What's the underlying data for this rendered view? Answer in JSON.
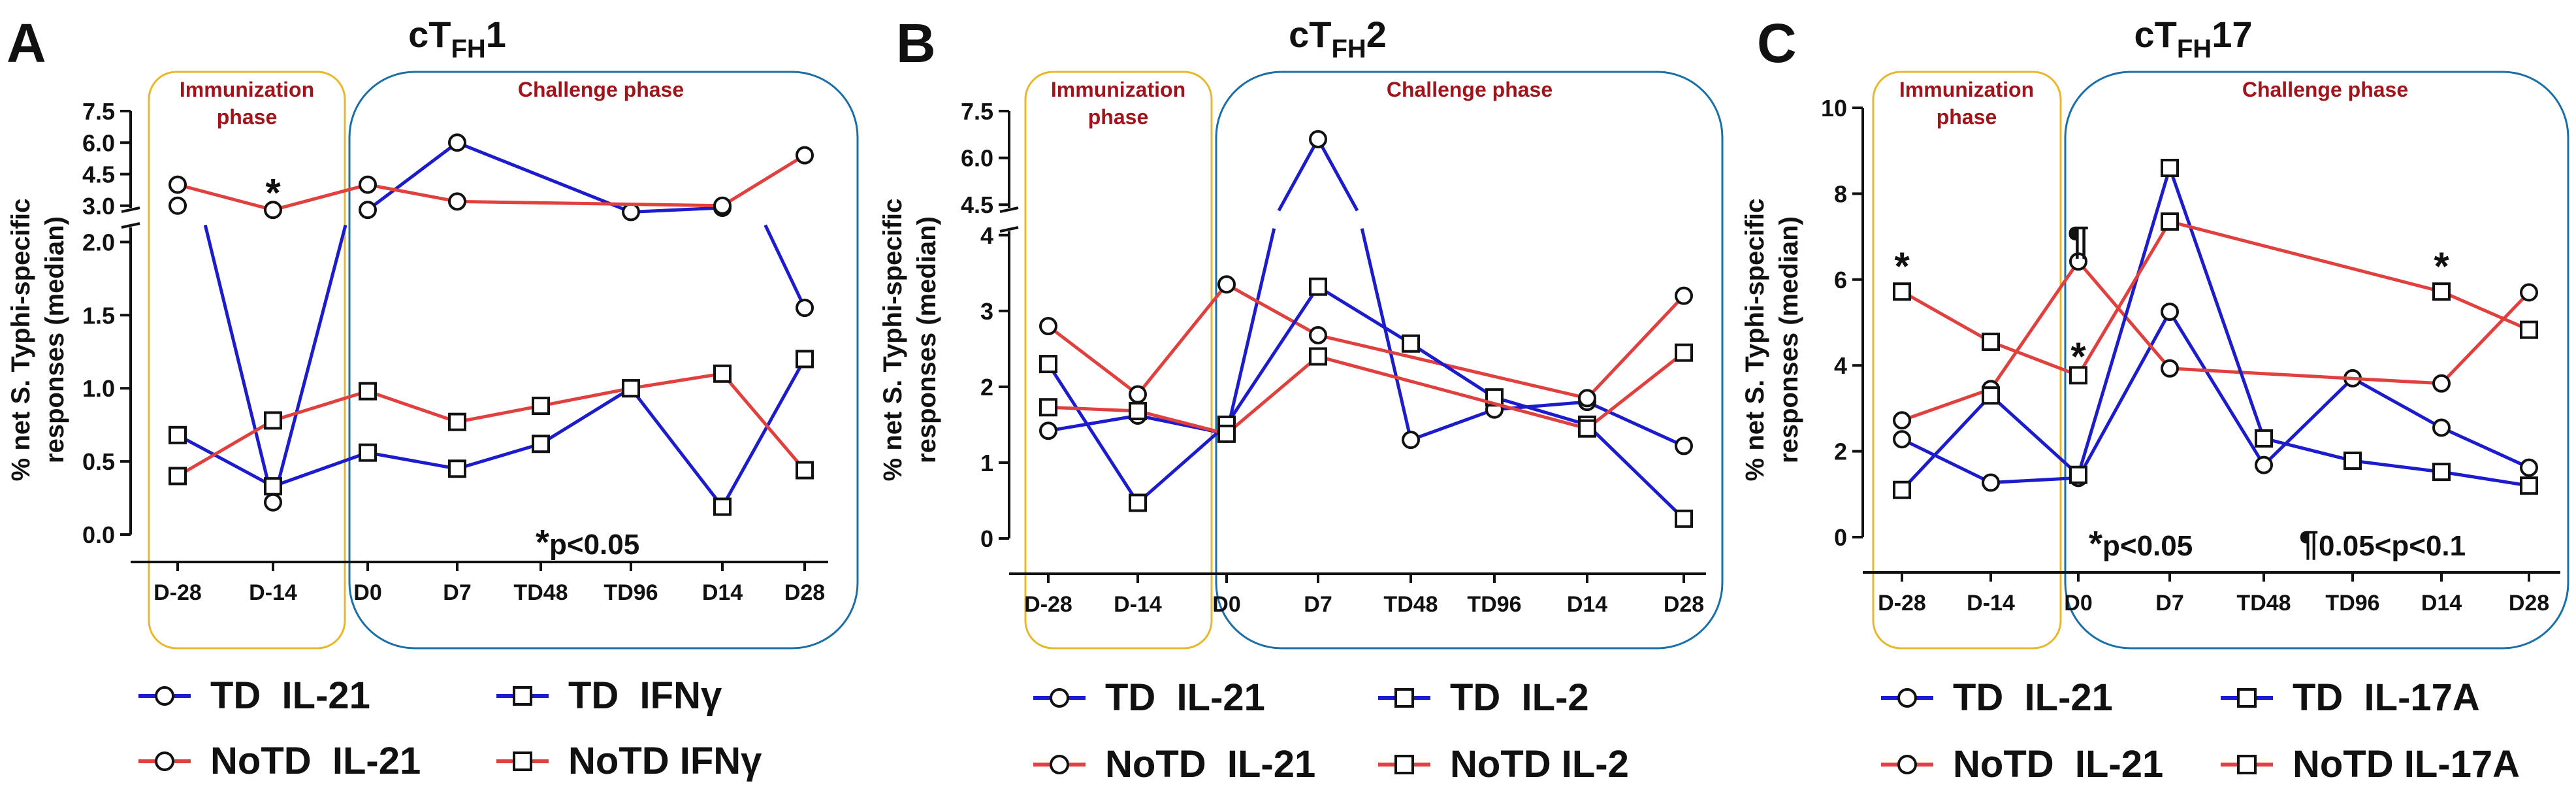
{
  "figure": {
    "colors": {
      "td": "#1c1ccc",
      "notd": "#e0403e",
      "immunization_box": "#e8b82c",
      "challenge_box": "#1b6fa8",
      "phase_text": "#a0141c",
      "axis": "#111111"
    },
    "ylabel_line1": "% net S. Typhi-specific",
    "ylabel_line2": "responses (median)"
  },
  "chart_data": [
    {
      "type": "line",
      "panel_letter": "A",
      "title_main": "cT",
      "title_sub": "FH",
      "title_suffix": "1",
      "phase_immunization_line1": "Immunization",
      "phase_immunization_line2": "phase",
      "phase_challenge": "Challenge phase",
      "categories": [
        "D-28",
        "D-14",
        "D0",
        "D7",
        "TD48",
        "TD96",
        "D14",
        "D28"
      ],
      "y_ticks_lower": [
        "0.0",
        "0.5",
        "1.0",
        "1.5",
        "2.0"
      ],
      "y_ticks_upper": [
        "3.0",
        "4.5",
        "6.0",
        "7.5"
      ],
      "y_break": [
        2.1,
        2.9
      ],
      "ylim": [
        0,
        7.5
      ],
      "series": [
        {
          "name": "TD  IL-21",
          "group": "td",
          "marker": "circle",
          "values": [
            3.0,
            0.22,
            2.8,
            6.0,
            null,
            2.7,
            2.9,
            1.55
          ]
        },
        {
          "name": "NoTD  IL-21",
          "group": "notd",
          "marker": "circle",
          "values": [
            4.0,
            2.8,
            4.0,
            3.2,
            null,
            null,
            3.0,
            5.4
          ]
        },
        {
          "name": "TD  IFNγ",
          "group": "td",
          "marker": "square",
          "values": [
            0.68,
            0.33,
            0.56,
            0.45,
            0.62,
            1.0,
            0.19,
            1.2
          ]
        },
        {
          "name": "NoTD IFNγ",
          "group": "notd",
          "marker": "square",
          "values": [
            0.4,
            0.78,
            0.98,
            0.77,
            0.88,
            1.0,
            1.1,
            0.44
          ]
        }
      ],
      "annotations": [
        {
          "text": "*",
          "x_index": 1,
          "y": 3.6
        }
      ],
      "significance_star": "*",
      "significance_text": "p<0.05",
      "legend": [
        {
          "label": "TD  IL-21",
          "group": "td",
          "marker": "circle"
        },
        {
          "label": "TD  IFNγ",
          "group": "td",
          "marker": "square"
        },
        {
          "label": "NoTD  IL-21",
          "group": "notd",
          "marker": "circle"
        },
        {
          "label": "NoTD IFNγ",
          "group": "notd",
          "marker": "square"
        }
      ]
    },
    {
      "type": "line",
      "panel_letter": "B",
      "title_main": "cT",
      "title_sub": "FH",
      "title_suffix": "2",
      "phase_immunization_line1": "Immunization",
      "phase_immunization_line2": "phase",
      "phase_challenge": "Challenge phase",
      "categories": [
        "D-28",
        "D-14",
        "D0",
        "D7",
        "TD48",
        "TD96",
        "D14",
        "D28"
      ],
      "y_ticks_lower": [
        "0",
        "1",
        "2",
        "3",
        "4"
      ],
      "y_ticks_upper": [
        "4.5",
        "6.0",
        "7.5"
      ],
      "y_break": [
        4.05,
        4.4
      ],
      "ylim": [
        0,
        7.5
      ],
      "series": [
        {
          "name": "TD  IL-21",
          "group": "td",
          "marker": "circle",
          "values": [
            1.42,
            1.62,
            1.38,
            6.6,
            1.3,
            1.7,
            1.8,
            1.22
          ]
        },
        {
          "name": "NoTD  IL-21",
          "group": "notd",
          "marker": "circle",
          "values": [
            2.8,
            1.9,
            3.35,
            2.68,
            null,
            null,
            1.85,
            3.2
          ]
        },
        {
          "name": "TD  IL-2",
          "group": "td",
          "marker": "square",
          "values": [
            2.3,
            0.47,
            1.5,
            3.32,
            2.57,
            1.86,
            1.5,
            0.26
          ]
        },
        {
          "name": "NoTD IL-2",
          "group": "notd",
          "marker": "square",
          "values": [
            1.73,
            1.68,
            1.38,
            2.4,
            null,
            null,
            1.45,
            2.45
          ]
        }
      ],
      "annotations": [],
      "legend": [
        {
          "label": "TD  IL-21",
          "group": "td",
          "marker": "circle"
        },
        {
          "label": "TD  IL-2",
          "group": "td",
          "marker": "square"
        },
        {
          "label": "NoTD  IL-21",
          "group": "notd",
          "marker": "circle"
        },
        {
          "label": "NoTD IL-2",
          "group": "notd",
          "marker": "square"
        }
      ]
    },
    {
      "type": "line",
      "panel_letter": "C",
      "title_main": "cT",
      "title_sub": "FH",
      "title_suffix": "17",
      "phase_immunization_line1": "Immunization",
      "phase_immunization_line2": "phase",
      "phase_challenge": "Challenge phase",
      "categories": [
        "D-28",
        "D-14",
        "D0",
        "D7",
        "TD48",
        "TD96",
        "D14",
        "D28"
      ],
      "y_ticks": [
        "0",
        "2",
        "4",
        "6",
        "8",
        "10"
      ],
      "ylim": [
        0,
        10
      ],
      "series": [
        {
          "name": "TD  IL-21",
          "group": "td",
          "marker": "circle",
          "values": [
            2.28,
            1.27,
            1.38,
            5.25,
            1.68,
            3.7,
            2.55,
            1.62
          ]
        },
        {
          "name": "NoTD  IL-21",
          "group": "notd",
          "marker": "circle",
          "values": [
            2.72,
            3.45,
            6.42,
            3.93,
            null,
            null,
            3.58,
            5.7
          ]
        },
        {
          "name": "TD  IL-17A",
          "group": "td",
          "marker": "square",
          "values": [
            1.1,
            3.3,
            1.45,
            8.6,
            2.3,
            1.78,
            1.52,
            1.2
          ]
        },
        {
          "name": "NoTD IL-17A",
          "group": "notd",
          "marker": "square",
          "values": [
            5.72,
            4.55,
            3.77,
            7.35,
            null,
            null,
            5.72,
            4.83
          ]
        }
      ],
      "annotations": [
        {
          "text": "*",
          "x_index": 0,
          "y": 6.3
        },
        {
          "text": "¶",
          "x_index": 2,
          "y": 6.9
        },
        {
          "text": "*",
          "x_index": 2,
          "y": 4.2
        },
        {
          "text": "*",
          "x_index": 6,
          "y": 6.3
        }
      ],
      "significance_star": "*",
      "significance_text": "p<0.05",
      "trend_symbol": "¶",
      "trend_text": "0.05<p<0.1",
      "legend": [
        {
          "label": "TD  IL-21",
          "group": "td",
          "marker": "circle"
        },
        {
          "label": "TD  IL-17A",
          "group": "td",
          "marker": "square"
        },
        {
          "label": "NoTD  IL-21",
          "group": "notd",
          "marker": "circle"
        },
        {
          "label": "NoTD IL-17A",
          "group": "notd",
          "marker": "square"
        }
      ]
    }
  ]
}
